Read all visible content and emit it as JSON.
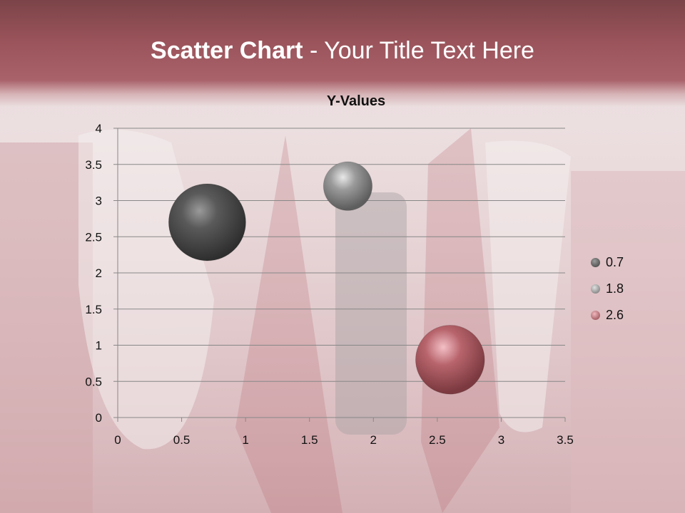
{
  "slide": {
    "title_bold": "Scatter Chart",
    "title_rest": " - Your Title Text Here"
  },
  "chart_data": {
    "type": "bubble",
    "title": "Y-Values",
    "xlim": [
      0,
      3.5
    ],
    "ylim": [
      0,
      4
    ],
    "xticks": [
      "0",
      "0.5",
      "1",
      "1.5",
      "2",
      "2.5",
      "3",
      "3.5"
    ],
    "yticks": [
      "0",
      "0.5",
      "1",
      "1.5",
      "2",
      "2.5",
      "3",
      "3.5",
      "4"
    ],
    "grid": "horizontal",
    "legend_position": "right",
    "series": [
      {
        "name": "0.7",
        "x": 0.7,
        "y": 2.7,
        "size": 10,
        "color": "#4a4a4a"
      },
      {
        "name": "1.8",
        "x": 1.8,
        "y": 3.2,
        "size": 4,
        "color": "#8a8a8a"
      },
      {
        "name": "2.6",
        "x": 2.6,
        "y": 0.8,
        "size": 8,
        "color": "#b0585f"
      }
    ]
  }
}
